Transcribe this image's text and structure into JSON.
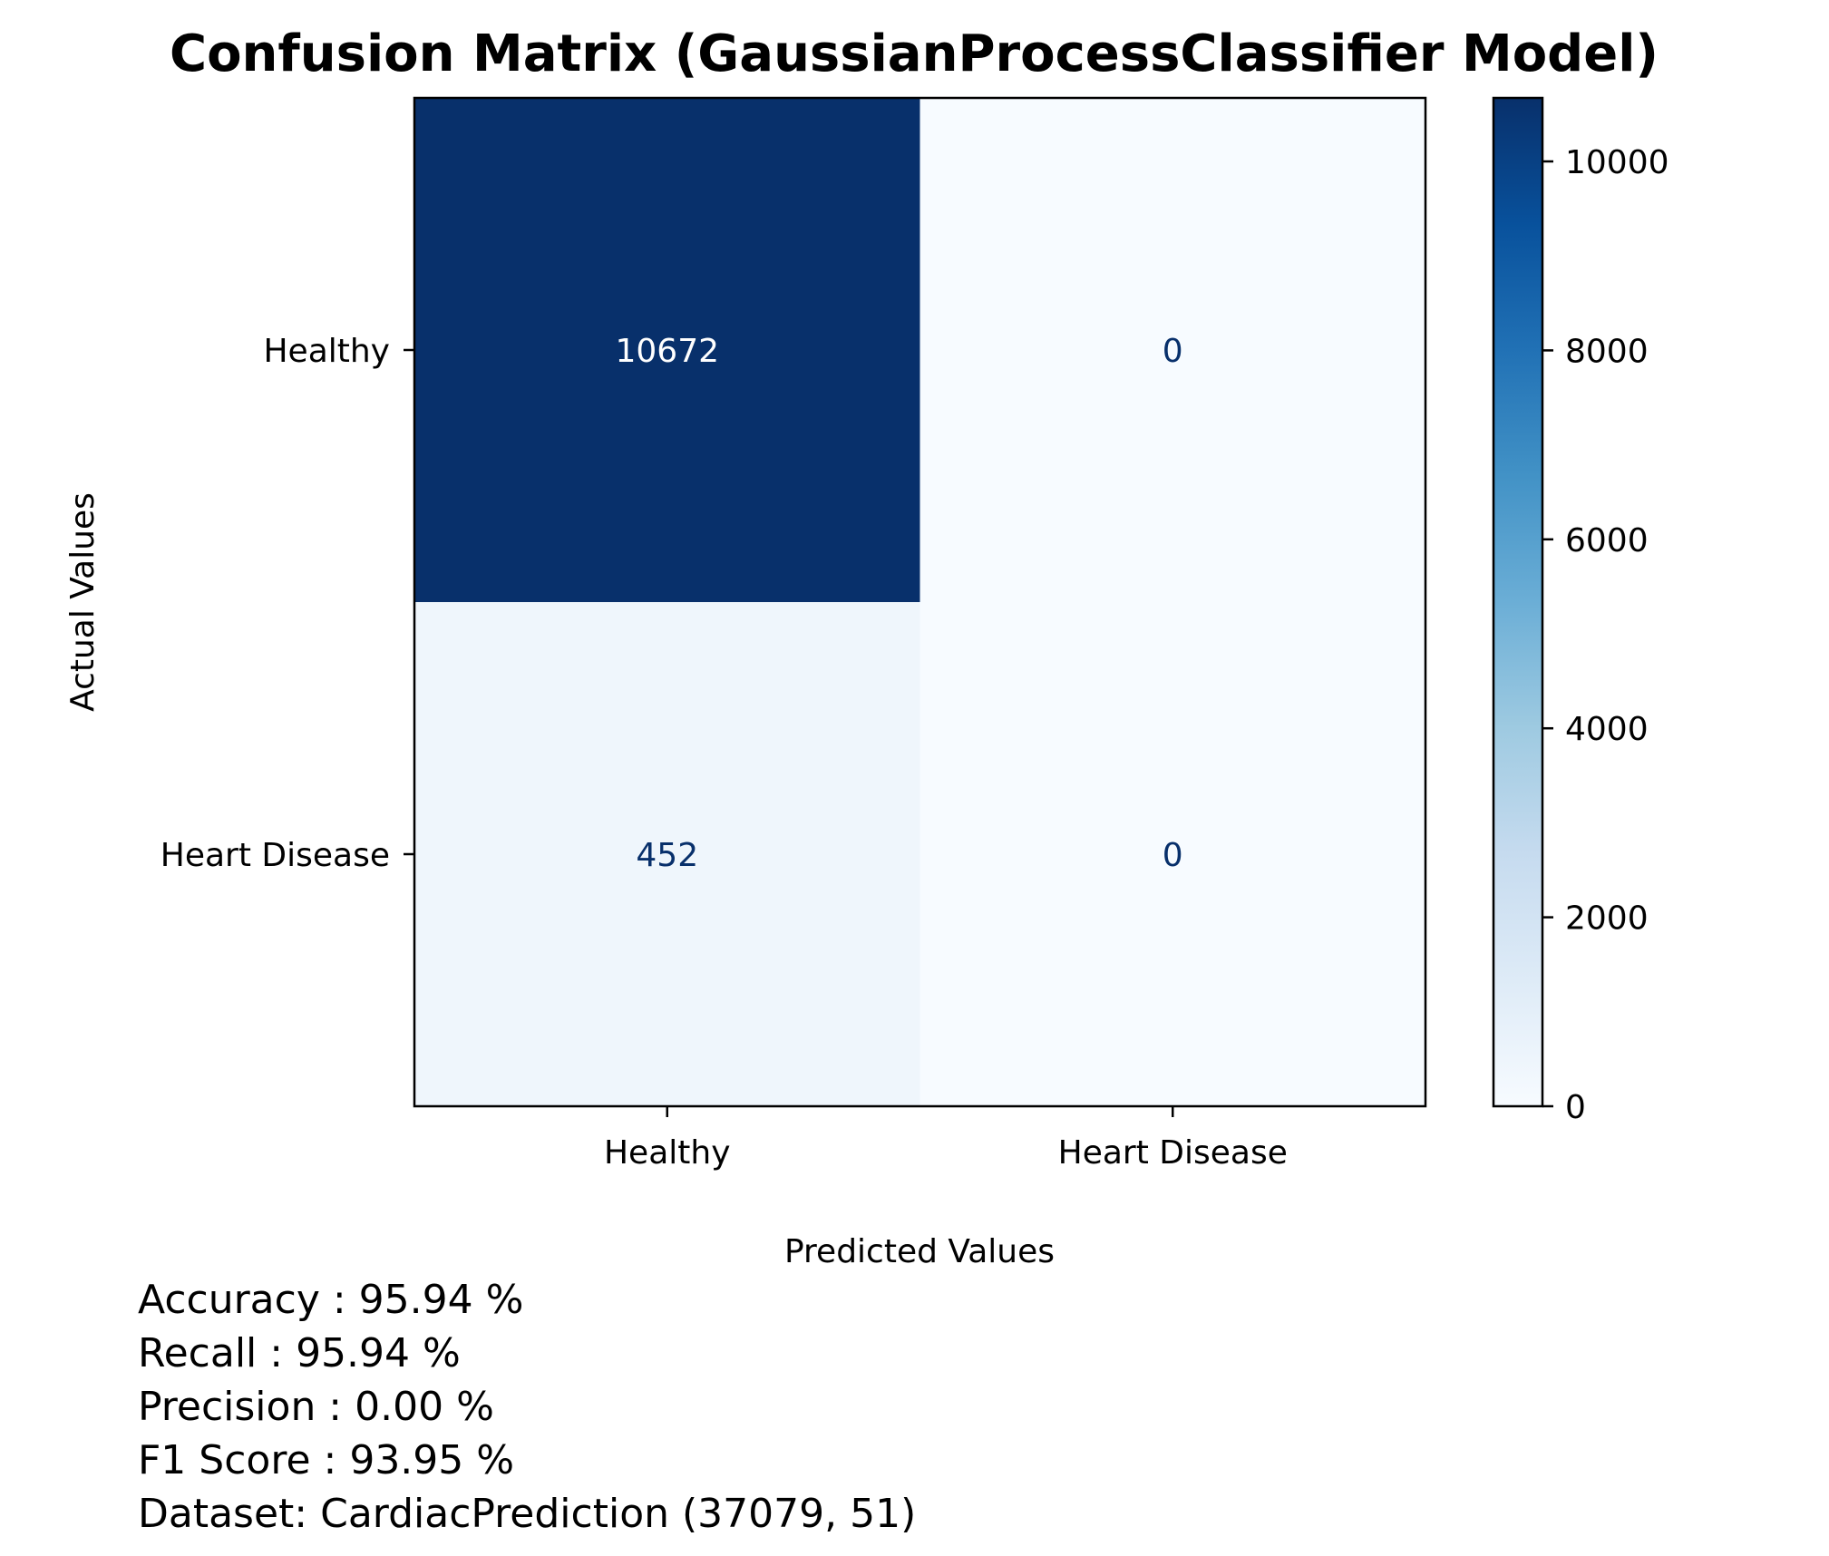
{
  "chart_data": {
    "type": "heatmap",
    "title": "Confusion Matrix (GaussianProcessClassifier Model)",
    "xlabel": "Predicted Values",
    "ylabel": "Actual Values",
    "x_categories": [
      "Healthy",
      "Heart Disease"
    ],
    "y_categories": [
      "Healthy",
      "Heart Disease"
    ],
    "matrix": [
      [
        10672,
        0
      ],
      [
        452,
        0
      ]
    ],
    "colormap": "Blues",
    "colorbar": {
      "range": [
        0,
        10672
      ],
      "ticks": [
        0,
        2000,
        4000,
        6000,
        8000,
        10000
      ],
      "tick_labels": [
        "0",
        "2000",
        "4000",
        "6000",
        "8000",
        "10000"
      ]
    },
    "annotation_colors": {
      "on_dark": "#ffffff",
      "on_light": "#08306b"
    },
    "metrics": [
      "Accuracy : 95.94 %",
      "Recall : 95.94 %",
      "Precision : 0.00 %",
      "F1 Score : 93.95 %",
      "Dataset: CardiacPrediction (37079, 51)"
    ]
  }
}
